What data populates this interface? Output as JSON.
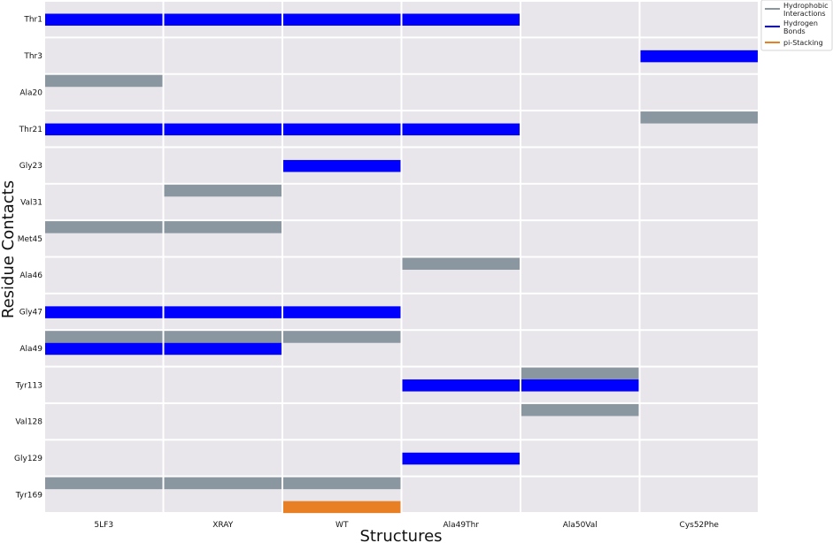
{
  "chart_data": {
    "type": "heatmap",
    "xlabel": "Structures",
    "ylabel": "Residue Contacts",
    "structures": [
      "5LF3",
      "XRAY",
      "WT",
      "Ala49Thr",
      "Ala50Val",
      "Cys52Phe"
    ],
    "residues": [
      "Thr1",
      "Thr3",
      "Ala20",
      "Thr21",
      "Gly23",
      "Val31",
      "Met45",
      "Ala46",
      "Gly47",
      "Ala49",
      "Tyr113",
      "Val128",
      "Gly129",
      "Tyr169"
    ],
    "interaction_types": [
      "Hydrophobic Interactions",
      "Hydrogen Bonds",
      "pi-Stacking"
    ],
    "legend": {
      "placement": "top-right",
      "entries": [
        {
          "label_lines": [
            "Hydrophobic",
            "Interactions"
          ],
          "color": "#8a96a0"
        },
        {
          "label_lines": [
            "Hydrogen",
            "Bonds"
          ],
          "color": "#0000ff"
        },
        {
          "label_lines": [
            "pi-Stacking"
          ],
          "color": "#e87f24"
        }
      ]
    },
    "colors": {
      "Hydrophobic Interactions": "#8a96a0",
      "Hydrogen Bonds": "#0000ff",
      "pi-Stacking": "#e87f24",
      "cell_background": "#e8e6ea",
      "grid_lines": "#ffffff"
    },
    "contacts": [
      {
        "residue": "Thr1",
        "structure": "5LF3",
        "type": "Hydrogen Bonds"
      },
      {
        "residue": "Thr1",
        "structure": "XRAY",
        "type": "Hydrogen Bonds"
      },
      {
        "residue": "Thr1",
        "structure": "WT",
        "type": "Hydrogen Bonds"
      },
      {
        "residue": "Thr1",
        "structure": "Ala49Thr",
        "type": "Hydrogen Bonds"
      },
      {
        "residue": "Thr3",
        "structure": "Cys52Phe",
        "type": "Hydrogen Bonds"
      },
      {
        "residue": "Ala20",
        "structure": "5LF3",
        "type": "Hydrophobic Interactions"
      },
      {
        "residue": "Thr21",
        "structure": "5LF3",
        "type": "Hydrogen Bonds"
      },
      {
        "residue": "Thr21",
        "structure": "XRAY",
        "type": "Hydrogen Bonds"
      },
      {
        "residue": "Thr21",
        "structure": "WT",
        "type": "Hydrogen Bonds"
      },
      {
        "residue": "Thr21",
        "structure": "Ala49Thr",
        "type": "Hydrogen Bonds"
      },
      {
        "residue": "Thr21",
        "structure": "Cys52Phe",
        "type": "Hydrophobic Interactions"
      },
      {
        "residue": "Gly23",
        "structure": "WT",
        "type": "Hydrogen Bonds"
      },
      {
        "residue": "Val31",
        "structure": "XRAY",
        "type": "Hydrophobic Interactions"
      },
      {
        "residue": "Met45",
        "structure": "5LF3",
        "type": "Hydrophobic Interactions"
      },
      {
        "residue": "Met45",
        "structure": "XRAY",
        "type": "Hydrophobic Interactions"
      },
      {
        "residue": "Ala46",
        "structure": "Ala49Thr",
        "type": "Hydrophobic Interactions"
      },
      {
        "residue": "Gly47",
        "structure": "5LF3",
        "type": "Hydrogen Bonds"
      },
      {
        "residue": "Gly47",
        "structure": "XRAY",
        "type": "Hydrogen Bonds"
      },
      {
        "residue": "Gly47",
        "structure": "WT",
        "type": "Hydrogen Bonds"
      },
      {
        "residue": "Ala49",
        "structure": "5LF3",
        "type": "Hydrophobic Interactions"
      },
      {
        "residue": "Ala49",
        "structure": "XRAY",
        "type": "Hydrophobic Interactions"
      },
      {
        "residue": "Ala49",
        "structure": "WT",
        "type": "Hydrophobic Interactions"
      },
      {
        "residue": "Ala49",
        "structure": "5LF3",
        "type": "Hydrogen Bonds"
      },
      {
        "residue": "Ala49",
        "structure": "XRAY",
        "type": "Hydrogen Bonds"
      },
      {
        "residue": "Tyr113",
        "structure": "Ala50Val",
        "type": "Hydrophobic Interactions"
      },
      {
        "residue": "Tyr113",
        "structure": "Ala49Thr",
        "type": "Hydrogen Bonds"
      },
      {
        "residue": "Tyr113",
        "structure": "Ala50Val",
        "type": "Hydrogen Bonds"
      },
      {
        "residue": "Val128",
        "structure": "Ala50Val",
        "type": "Hydrophobic Interactions"
      },
      {
        "residue": "Gly129",
        "structure": "Ala49Thr",
        "type": "Hydrogen Bonds"
      },
      {
        "residue": "Tyr169",
        "structure": "5LF3",
        "type": "Hydrophobic Interactions"
      },
      {
        "residue": "Tyr169",
        "structure": "XRAY",
        "type": "Hydrophobic Interactions"
      },
      {
        "residue": "Tyr169",
        "structure": "WT",
        "type": "Hydrophobic Interactions"
      },
      {
        "residue": "Tyr169",
        "structure": "WT",
        "type": "pi-Stacking"
      }
    ]
  }
}
